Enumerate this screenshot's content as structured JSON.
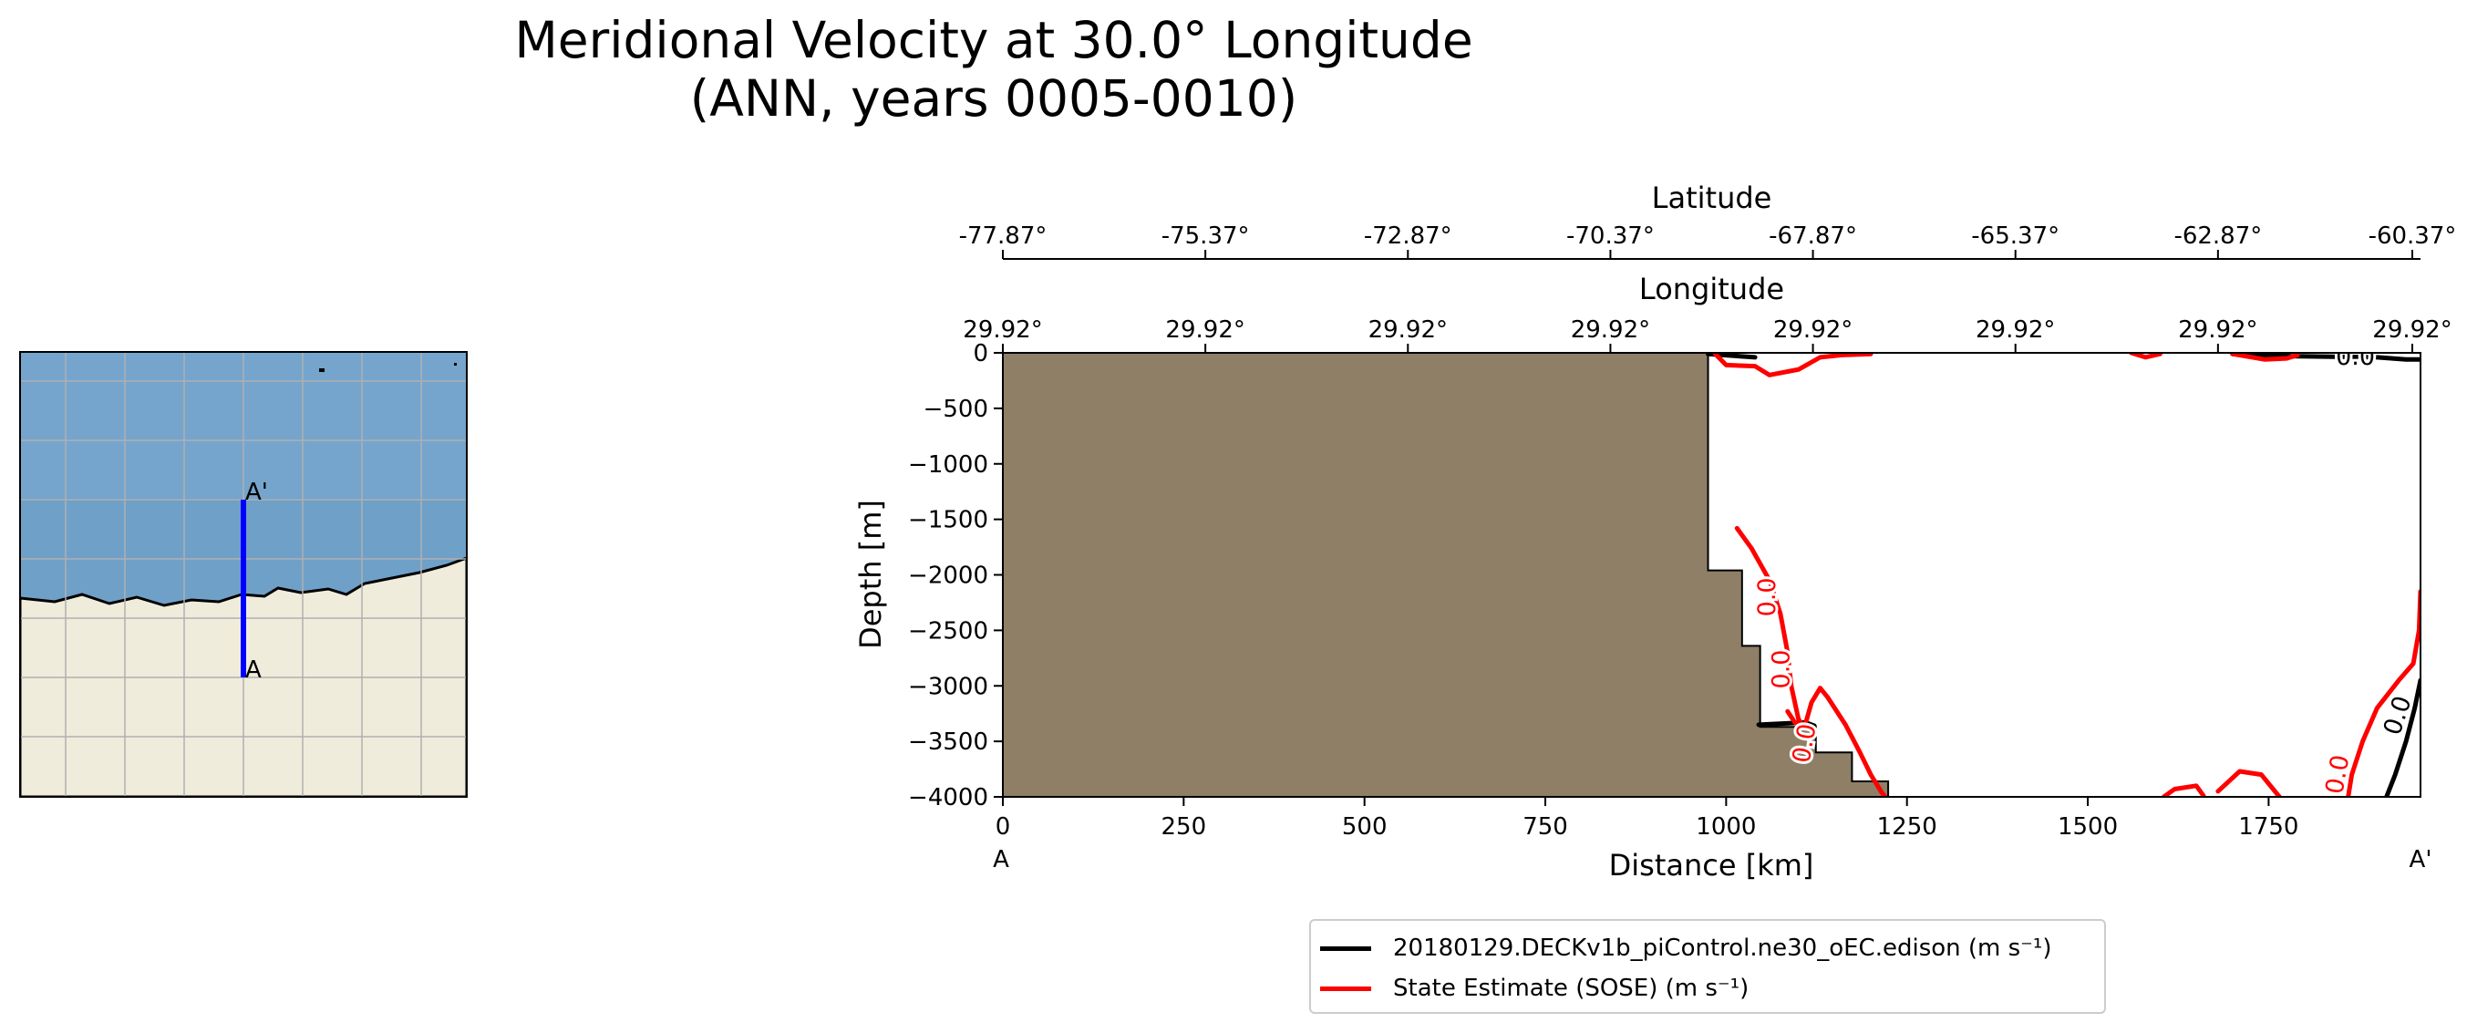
{
  "title": {
    "line1": "Meridional Velocity at 30.0° Longitude",
    "line2": "(ANN, years 0005-0010)"
  },
  "colors": {
    "land": "#8e7f66",
    "model_contour": "#000000",
    "obs_contour": "#ff0000",
    "transect_line": "#0000ff",
    "map_ocean": "#6fa0c8",
    "map_land": "#efecdc"
  },
  "map": {
    "point_a_label": "A",
    "point_b_label": "A'"
  },
  "chart_data": {
    "type": "contour_section",
    "xlabel": "Distance [km]",
    "ylabel": "Depth [m]",
    "xlim": [
      0,
      1960
    ],
    "ylim": [
      -4000,
      0
    ],
    "x_ticks": [
      0,
      250,
      500,
      750,
      1000,
      1250,
      1500,
      1750
    ],
    "y_ticks": [
      0,
      -500,
      -1000,
      -1500,
      -2000,
      -2500,
      -3000,
      -3500,
      -4000
    ],
    "x_endpoint_labels": [
      "A",
      "A'"
    ],
    "top_axes": [
      {
        "label": "Latitude",
        "tick_labels": [
          "-77.87°",
          "-75.37°",
          "-72.87°",
          "-70.37°",
          "-67.87°",
          "-65.37°",
          "-62.87°",
          "-60.37°"
        ]
      },
      {
        "label": "Longitude",
        "tick_labels": [
          "29.92°",
          "29.92°",
          "29.92°",
          "29.92°",
          "29.92°",
          "29.92°",
          "29.92°",
          "29.92°"
        ]
      }
    ],
    "bathymetry": [
      [
        0,
        0
      ],
      [
        975,
        0
      ],
      [
        975,
        -1960
      ],
      [
        1022,
        -1960
      ],
      [
        1022,
        -2640
      ],
      [
        1047,
        -2640
      ],
      [
        1047,
        -3370
      ],
      [
        1124,
        -3370
      ],
      [
        1124,
        -3600
      ],
      [
        1174,
        -3600
      ],
      [
        1174,
        -3860
      ],
      [
        1224,
        -3860
      ],
      [
        1224,
        -4000
      ],
      [
        0,
        -4000
      ]
    ],
    "contour_level_label": "0.0",
    "series": [
      {
        "name": "20180129.DECKv1b_piControl.ne30_oEC.edison (m s⁻¹)",
        "color": "#000000",
        "paths": [
          [
            [
              975,
              -10
            ],
            [
              1040,
              -40
            ]
          ],
          [
            [
              1700,
              -10
            ],
            [
              1780,
              -30
            ],
            [
              1900,
              -40
            ],
            [
              1940,
              -60
            ],
            [
              1960,
              -60
            ]
          ],
          [
            [
              1913,
              -4000
            ],
            [
              1925,
              -3800
            ],
            [
              1940,
              -3500
            ],
            [
              1952,
              -3200
            ],
            [
              1960,
              -2950
            ]
          ],
          [
            [
              1045,
              -3350
            ],
            [
              1110,
              -3330
            ],
            [
              1122,
              -3360
            ]
          ]
        ],
        "labels": [
          {
            "x": 1870,
            "y": -45,
            "text": "0.0",
            "rot": 0
          },
          {
            "x": 1930,
            "y": -3270,
            "text": "0.0",
            "rot": -72
          }
        ]
      },
      {
        "name": "State Estimate (SOSE) (m s⁻¹)",
        "color": "#ff0000",
        "paths": [
          [
            [
              985,
              -10
            ],
            [
              1000,
              -110
            ],
            [
              1040,
              -120
            ],
            [
              1060,
              -200
            ],
            [
              1100,
              -150
            ],
            [
              1130,
              -40
            ],
            [
              1160,
              -20
            ],
            [
              1200,
              -10
            ]
          ],
          [
            [
              1560,
              0
            ],
            [
              1580,
              -40
            ],
            [
              1600,
              -10
            ]
          ],
          [
            [
              1700,
              -10
            ],
            [
              1745,
              -60
            ],
            [
              1775,
              -50
            ],
            [
              1790,
              -20
            ]
          ],
          [
            [
              1015,
              -1580
            ],
            [
              1035,
              -1760
            ],
            [
              1060,
              -2050
            ],
            [
              1075,
              -2350
            ],
            [
              1085,
              -2700
            ],
            [
              1090,
              -3000
            ],
            [
              1100,
              -3300
            ],
            [
              1108,
              -3380
            ]
          ],
          [
            [
              1108,
              -3380
            ],
            [
              1118,
              -3150
            ],
            [
              1130,
              -3020
            ],
            [
              1140,
              -3100
            ],
            [
              1165,
              -3350
            ],
            [
              1185,
              -3600
            ],
            [
              1200,
              -3800
            ],
            [
              1215,
              -3960
            ],
            [
              1220,
              -4000
            ]
          ],
          [
            [
              1085,
              -3230
            ],
            [
              1095,
              -3330
            ],
            [
              1105,
              -3380
            ]
          ],
          [
            [
              1605,
              -4000
            ],
            [
              1620,
              -3930
            ],
            [
              1650,
              -3900
            ],
            [
              1660,
              -3990
            ]
          ],
          [
            [
              1680,
              -3950
            ],
            [
              1710,
              -3770
            ],
            [
              1740,
              -3800
            ],
            [
              1760,
              -3960
            ],
            [
              1765,
              -4000
            ]
          ],
          [
            [
              1860,
              -4000
            ],
            [
              1865,
              -3800
            ],
            [
              1880,
              -3500
            ],
            [
              1900,
              -3200
            ],
            [
              1930,
              -2950
            ],
            [
              1950,
              -2800
            ],
            [
              1958,
              -2500
            ],
            [
              1960,
              -2150
            ]
          ]
        ],
        "labels": [
          {
            "x": 1058,
            "y": -2200,
            "text": "0.0",
            "rot": -90
          },
          {
            "x": 1078,
            "y": -2850,
            "text": "0.0",
            "rot": -90
          },
          {
            "x": 1110,
            "y": -3520,
            "text": "0.0",
            "rot": -80
          },
          {
            "x": 1847,
            "y": -3800,
            "text": "0.0",
            "rot": -80
          }
        ]
      }
    ]
  }
}
